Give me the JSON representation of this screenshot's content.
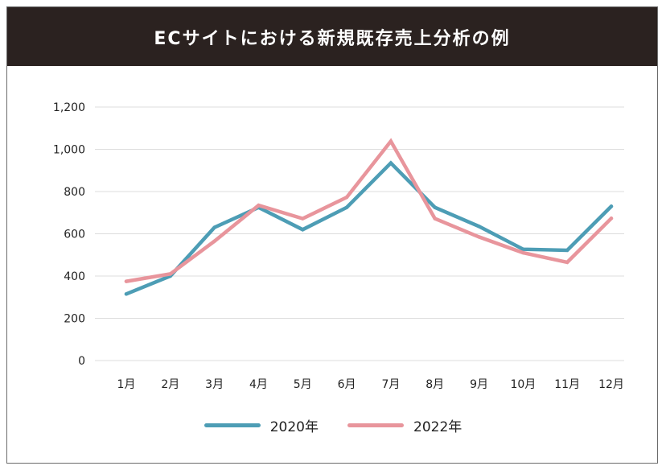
{
  "title": "ECサイトにおける新規既存売上分析の例",
  "colors": {
    "header_bg": "#2b2220",
    "series_2020": "#4d9db5",
    "series_2022": "#e8959c",
    "grid": "#dcdcdc"
  },
  "chart_data": {
    "type": "line",
    "categories": [
      "1月",
      "2月",
      "3月",
      "4月",
      "5月",
      "6月",
      "7月",
      "8月",
      "9月",
      "10月",
      "11月",
      "12月"
    ],
    "series": [
      {
        "name": "2020年",
        "values": [
          315,
          400,
          630,
          725,
          620,
          725,
          935,
          725,
          635,
          527,
          522,
          730
        ]
      },
      {
        "name": "2022年",
        "values": [
          375,
          410,
          565,
          735,
          672,
          773,
          1038,
          672,
          585,
          510,
          465,
          673
        ]
      }
    ],
    "ylim": [
      0,
      1200
    ],
    "yticks": [
      "0",
      "200",
      "400",
      "600",
      "800",
      "1,000",
      "1,200"
    ],
    "ytick_values": [
      0,
      200,
      400,
      600,
      800,
      1000,
      1200
    ],
    "grid": true,
    "legend_position": "bottom"
  }
}
